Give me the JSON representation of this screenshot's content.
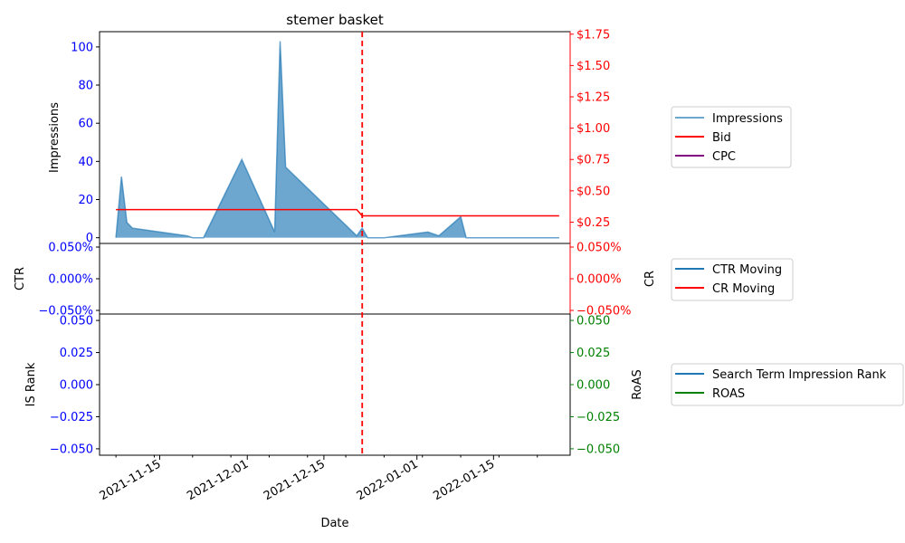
{
  "chart_data": {
    "type": "multi-panel",
    "title": "stemer basket",
    "xlabel": "Date",
    "x_range": [
      "2021-11-04",
      "2022-01-29"
    ],
    "x_ticks": [
      "2021-11-15",
      "2021-12-01",
      "2021-12-15",
      "2022-01-01",
      "2022-01-15"
    ],
    "event_line": {
      "date": "2021-12-22",
      "color": "#ff0000",
      "style": "dashed"
    },
    "colors": {
      "left_axis": "#0000ff",
      "right_axis_top": "#ff0000",
      "right_axis_bottom": "#008000",
      "impressions": "#1f77b4",
      "bid": "#ff0000",
      "cpc": "#800080",
      "ctr": "#1f77b4",
      "cr": "#ff0000",
      "rank": "#1f77b4",
      "roas": "#008000"
    },
    "panels": [
      {
        "id": "top",
        "ylabel_left": "Impressions",
        "ylim_left": [
          -3,
          108
        ],
        "yticks_left": [
          "0",
          "20",
          "40",
          "60",
          "80",
          "100"
        ],
        "yticks_left_values": [
          0,
          20,
          40,
          60,
          80,
          100
        ],
        "ylim_right": [
          0.08,
          1.77
        ],
        "yticks_right": [
          "$0.25",
          "$0.50",
          "$0.75",
          "$1.00",
          "$1.25",
          "$1.50",
          "$1.75"
        ],
        "yticks_right_values": [
          0.25,
          0.5,
          0.75,
          1.0,
          1.25,
          1.5,
          1.75
        ],
        "legend": [
          "Impressions",
          "Bid",
          "CPC"
        ],
        "series": [
          {
            "name": "Impressions",
            "type": "area",
            "points": [
              [
                "2021-11-07",
                0
              ],
              [
                "2021-11-08",
                32
              ],
              [
                "2021-11-09",
                8
              ],
              [
                "2021-11-10",
                5
              ],
              [
                "2021-11-20",
                1
              ],
              [
                "2021-11-21",
                0
              ],
              [
                "2021-11-23",
                0
              ],
              [
                "2021-11-30",
                41
              ],
              [
                "2021-12-06",
                3
              ],
              [
                "2021-12-07",
                103
              ],
              [
                "2021-12-08",
                37
              ],
              [
                "2021-12-21",
                1
              ],
              [
                "2021-12-22",
                5
              ],
              [
                "2021-12-23",
                0
              ],
              [
                "2021-12-26",
                0
              ],
              [
                "2022-01-03",
                3
              ],
              [
                "2022-01-05",
                1
              ],
              [
                "2022-01-09",
                11
              ],
              [
                "2022-01-10",
                0
              ],
              [
                "2022-01-27",
                0
              ]
            ]
          },
          {
            "name": "Bid",
            "type": "line",
            "points": [
              [
                "2021-11-07",
                0.35
              ],
              [
                "2021-12-21",
                0.35
              ],
              [
                "2021-12-22",
                0.3
              ],
              [
                "2022-01-27",
                0.3
              ]
            ]
          },
          {
            "name": "CPC",
            "type": "line",
            "points": []
          }
        ]
      },
      {
        "id": "middle",
        "ylabel_left": "CTR",
        "ylabel_right": "CR",
        "ylim": [
          -0.05,
          0.05
        ],
        "yticks_left": [
          "0.050%",
          "0.000%",
          "−0.050%"
        ],
        "yticks_right": [
          "0.050%",
          "0.000%",
          "−0.050%"
        ],
        "yticks_values": [
          0.05,
          0.0,
          -0.05
        ],
        "legend": [
          "CTR Moving",
          "CR Moving"
        ],
        "series": [
          {
            "name": "CTR Moving",
            "type": "line",
            "points": []
          },
          {
            "name": "CR Moving",
            "type": "line",
            "points": []
          }
        ]
      },
      {
        "id": "bottom",
        "ylabel_left": "IS Rank",
        "ylabel_right": "RoAS",
        "ylim": [
          -0.055,
          0.055
        ],
        "yticks_left": [
          "0.050",
          "0.025",
          "0.000",
          "−0.025",
          "−0.050"
        ],
        "yticks_right": [
          "0.050",
          "0.025",
          "0.000",
          "−0.025",
          "−0.050"
        ],
        "yticks_values": [
          0.05,
          0.025,
          0.0,
          -0.025,
          -0.05
        ],
        "legend": [
          "Search Term Impression Rank",
          "ROAS"
        ],
        "series": [
          {
            "name": "Search Term Impression Rank",
            "type": "line",
            "points": []
          },
          {
            "name": "ROAS",
            "type": "line",
            "points": []
          }
        ]
      }
    ]
  }
}
